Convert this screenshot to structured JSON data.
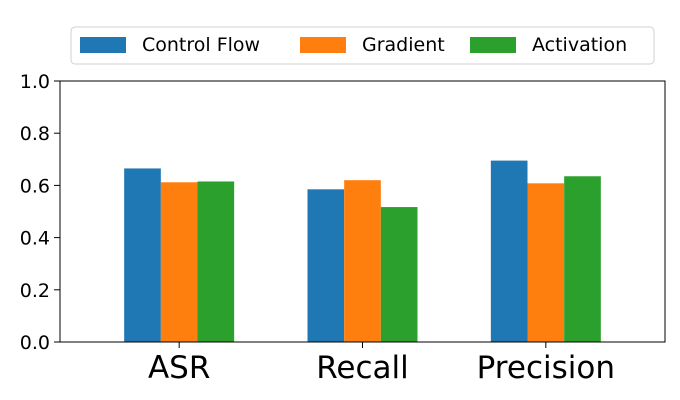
{
  "chart_data": {
    "type": "bar",
    "categories": [
      "ASR",
      "Recall",
      "Precision"
    ],
    "series": [
      {
        "name": "Control Flow",
        "color": "#1f77b4",
        "values": [
          0.665,
          0.585,
          0.695
        ]
      },
      {
        "name": "Gradient",
        "color": "#ff7f0e",
        "values": [
          0.612,
          0.62,
          0.608
        ]
      },
      {
        "name": "Activation",
        "color": "#2ca02c",
        "values": [
          0.615,
          0.517,
          0.635
        ]
      }
    ],
    "ylim": [
      0,
      1.0
    ],
    "yticks": [
      "0.0",
      "0.2",
      "0.4",
      "0.6",
      "0.8",
      "1.0"
    ],
    "grid": false,
    "legend_position": "top-center"
  }
}
